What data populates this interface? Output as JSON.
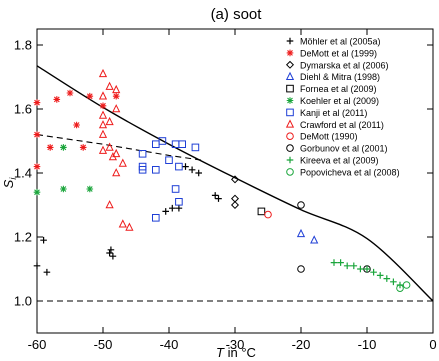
{
  "chart_data": {
    "type": "scatter",
    "title": "(a) soot",
    "xlabel": "T in °C",
    "ylabel": "S_i",
    "xlim": [
      -60,
      0
    ],
    "ylim": [
      0.9,
      1.85
    ],
    "xticks": [
      -60,
      -50,
      -40,
      -30,
      -20,
      -10,
      0
    ],
    "yticks": [
      1.0,
      1.2,
      1.4,
      1.6,
      1.8
    ],
    "grid": false,
    "legend_position": "top-right",
    "lines": [
      {
        "style": "solid",
        "x": [
          -60,
          -50,
          -40,
          -30,
          -20,
          -10,
          0
        ],
        "y": [
          1.735,
          1.605,
          1.49,
          1.385,
          1.285,
          1.195,
          1.0
        ]
      },
      {
        "style": "dashed",
        "x": [
          -60,
          -50,
          -40,
          -35
        ],
        "y": [
          1.52,
          1.49,
          1.455,
          1.44
        ]
      },
      {
        "style": "dashed",
        "x": [
          -60,
          0
        ],
        "y": [
          1.0,
          1.0
        ]
      }
    ],
    "series": [
      {
        "name": "Möhler et al (2005a)",
        "color": "#000000",
        "marker": "plus",
        "points": [
          [
            -60,
            1.11
          ],
          [
            -59,
            1.19
          ],
          [
            -58.5,
            1.09
          ],
          [
            -49,
            1.15
          ],
          [
            -48.8,
            1.16
          ],
          [
            -48.5,
            1.14
          ],
          [
            -40.5,
            1.28
          ],
          [
            -39.5,
            1.29
          ],
          [
            -38.5,
            1.29
          ],
          [
            -37.5,
            1.42
          ],
          [
            -36.5,
            1.41
          ],
          [
            -35.5,
            1.4
          ],
          [
            -33,
            1.33
          ],
          [
            -32.5,
            1.32
          ]
        ]
      },
      {
        "name": "DeMott et al (1999)",
        "color": "#ee1c1c",
        "marker": "asterisk",
        "points": [
          [
            -60,
            1.62
          ],
          [
            -57,
            1.63
          ],
          [
            -55,
            1.65
          ],
          [
            -54,
            1.55
          ],
          [
            -52,
            1.64
          ],
          [
            -50,
            1.61
          ],
          [
            -60,
            1.52
          ],
          [
            -58,
            1.48
          ],
          [
            -53,
            1.48
          ],
          [
            -60,
            1.42
          ],
          [
            -48,
            1.64
          ]
        ]
      },
      {
        "name": "Dymarska et al (2006)",
        "color": "#000000",
        "marker": "diamond",
        "points": [
          [
            -30,
            1.38
          ],
          [
            -30,
            1.32
          ],
          [
            -30,
            1.3
          ]
        ]
      },
      {
        "name": "Diehl & Mitra (1998)",
        "color": "#1f3fd6",
        "marker": "triangle",
        "points": [
          [
            -20,
            1.21
          ],
          [
            -18,
            1.19
          ]
        ]
      },
      {
        "name": "Fornea et al (2009)",
        "color": "#000000",
        "marker": "square",
        "points": [
          [
            -26,
            1.28
          ]
        ]
      },
      {
        "name": "Koehler et al (2009)",
        "color": "#1aa53b",
        "marker": "asterisk",
        "points": [
          [
            -56,
            1.48
          ],
          [
            -56,
            1.35
          ],
          [
            -52,
            1.35
          ],
          [
            -60,
            1.34
          ]
        ]
      },
      {
        "name": "Kanji et al (2011)",
        "color": "#1f3fd6",
        "marker": "square",
        "points": [
          [
            -41,
            1.5
          ],
          [
            -42,
            1.49
          ],
          [
            -39,
            1.49
          ],
          [
            -38,
            1.49
          ],
          [
            -44,
            1.46
          ],
          [
            -44,
            1.42
          ],
          [
            -42,
            1.41
          ],
          [
            -44,
            1.41
          ],
          [
            -40,
            1.44
          ],
          [
            -38.5,
            1.42
          ],
          [
            -36,
            1.48
          ],
          [
            -39,
            1.35
          ],
          [
            -38.5,
            1.31
          ],
          [
            -42,
            1.26
          ]
        ]
      },
      {
        "name": "Crawford et al (2011)",
        "color": "#ee1c1c",
        "marker": "triangle",
        "points": [
          [
            -50,
            1.71
          ],
          [
            -50,
            1.64
          ],
          [
            -49,
            1.67
          ],
          [
            -48,
            1.66
          ],
          [
            -48,
            1.6
          ],
          [
            -50,
            1.58
          ],
          [
            -49,
            1.56
          ],
          [
            -50,
            1.55
          ],
          [
            -50,
            1.52
          ],
          [
            -49,
            1.48
          ],
          [
            -48,
            1.46
          ],
          [
            -50,
            1.47
          ],
          [
            -47,
            1.43
          ],
          [
            -48,
            1.4
          ],
          [
            -49,
            1.3
          ],
          [
            -47,
            1.24
          ],
          [
            -46,
            1.23
          ],
          [
            -48.5,
            1.45
          ]
        ]
      },
      {
        "name": "DeMott (1990)",
        "color": "#ee1c1c",
        "marker": "circle",
        "points": [
          [
            -25,
            1.27
          ]
        ]
      },
      {
        "name": "Gorbunov et al (2001)",
        "color": "#000000",
        "marker": "circle",
        "points": [
          [
            -20,
            1.3
          ],
          [
            -20,
            1.1
          ],
          [
            -10,
            1.1
          ]
        ]
      },
      {
        "name": "Kireeva et al (2009)",
        "color": "#1aa53b",
        "marker": "plus",
        "points": [
          [
            -15,
            1.12
          ],
          [
            -14,
            1.12
          ],
          [
            -13,
            1.11
          ],
          [
            -12,
            1.11
          ],
          [
            -11,
            1.1
          ],
          [
            -10,
            1.1
          ],
          [
            -9,
            1.09
          ],
          [
            -8,
            1.08
          ],
          [
            -7,
            1.07
          ],
          [
            -6,
            1.06
          ],
          [
            -5,
            1.05
          ]
        ]
      },
      {
        "name": "Popovicheva et al (2008)",
        "color": "#1aa53b",
        "marker": "circle",
        "points": [
          [
            -4,
            1.05
          ],
          [
            -5,
            1.04
          ]
        ]
      }
    ]
  }
}
